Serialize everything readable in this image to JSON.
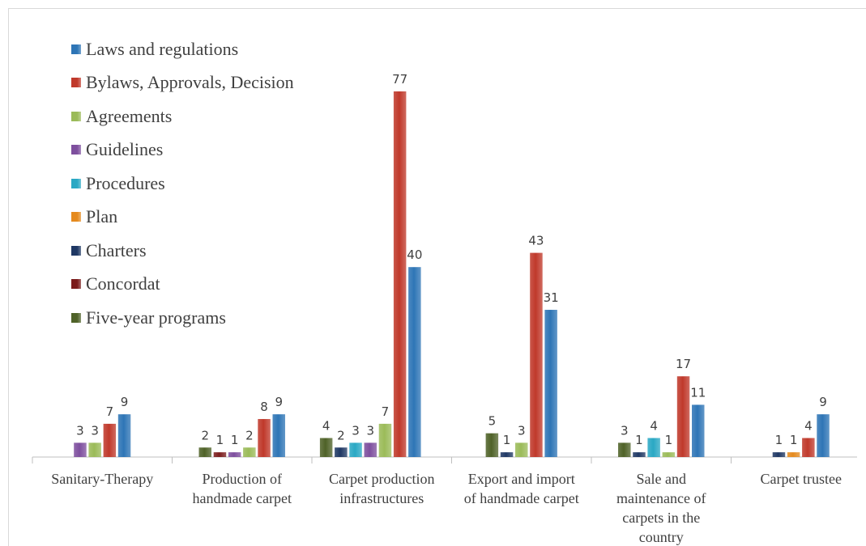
{
  "chart_data": {
    "type": "bar",
    "categories": [
      "Sanitary-Therapy",
      "Production of handmade carpet",
      "Carpet production infrastructures",
      "Export and import of handmade carpet",
      "Sale and maintenance of carpets in the country",
      "Carpet trustee"
    ],
    "category_lines": [
      [
        "Sanitary-Therapy"
      ],
      [
        "Production of",
        "handmade carpet"
      ],
      [
        "Carpet production",
        "infrastructures"
      ],
      [
        "Export and import",
        "of handmade carpet"
      ],
      [
        "Sale and",
        "maintenance of",
        "carpets in the",
        "country"
      ],
      [
        "Carpet trustee"
      ]
    ],
    "series": [
      {
        "name": "Five-year programs",
        "color": "#4f6228",
        "values": [
          null,
          2,
          4,
          5,
          3,
          null
        ]
      },
      {
        "name": "Concordat",
        "color": "#7b1c1c",
        "values": [
          null,
          1,
          null,
          null,
          null,
          null
        ]
      },
      {
        "name": "Charters",
        "color": "#1f3864",
        "values": [
          null,
          null,
          2,
          1,
          1,
          1
        ]
      },
      {
        "name": "Plan",
        "color": "#e58a1e",
        "values": [
          null,
          null,
          null,
          null,
          null,
          1
        ]
      },
      {
        "name": "Procedures",
        "color": "#2aa8c4",
        "values": [
          null,
          null,
          3,
          null,
          4,
          null
        ]
      },
      {
        "name": "Guidelines",
        "color": "#7e4f9e",
        "values": [
          3,
          1,
          3,
          null,
          null,
          null
        ]
      },
      {
        "name": "Agreements",
        "color": "#9bbb59",
        "values": [
          3,
          2,
          7,
          3,
          1,
          null
        ]
      },
      {
        "name": "Bylaws, Approvals, Decision",
        "color": "#c0392b",
        "values": [
          7,
          8,
          77,
          43,
          17,
          4
        ]
      },
      {
        "name": "Laws and regulations",
        "color": "#2e75b6",
        "values": [
          9,
          9,
          40,
          31,
          11,
          9
        ]
      }
    ],
    "legend_order": [
      "Laws and regulations",
      "Bylaws, Approvals, Decision",
      "Agreements",
      "Guidelines",
      "Procedures",
      "Plan",
      "Charters",
      "Concordat",
      "Five-year programs"
    ],
    "legend_position": "top-left",
    "title": "",
    "xlabel": "",
    "ylabel": "",
    "ylim": [
      0,
      77
    ],
    "grid": false,
    "data_labels": true
  }
}
